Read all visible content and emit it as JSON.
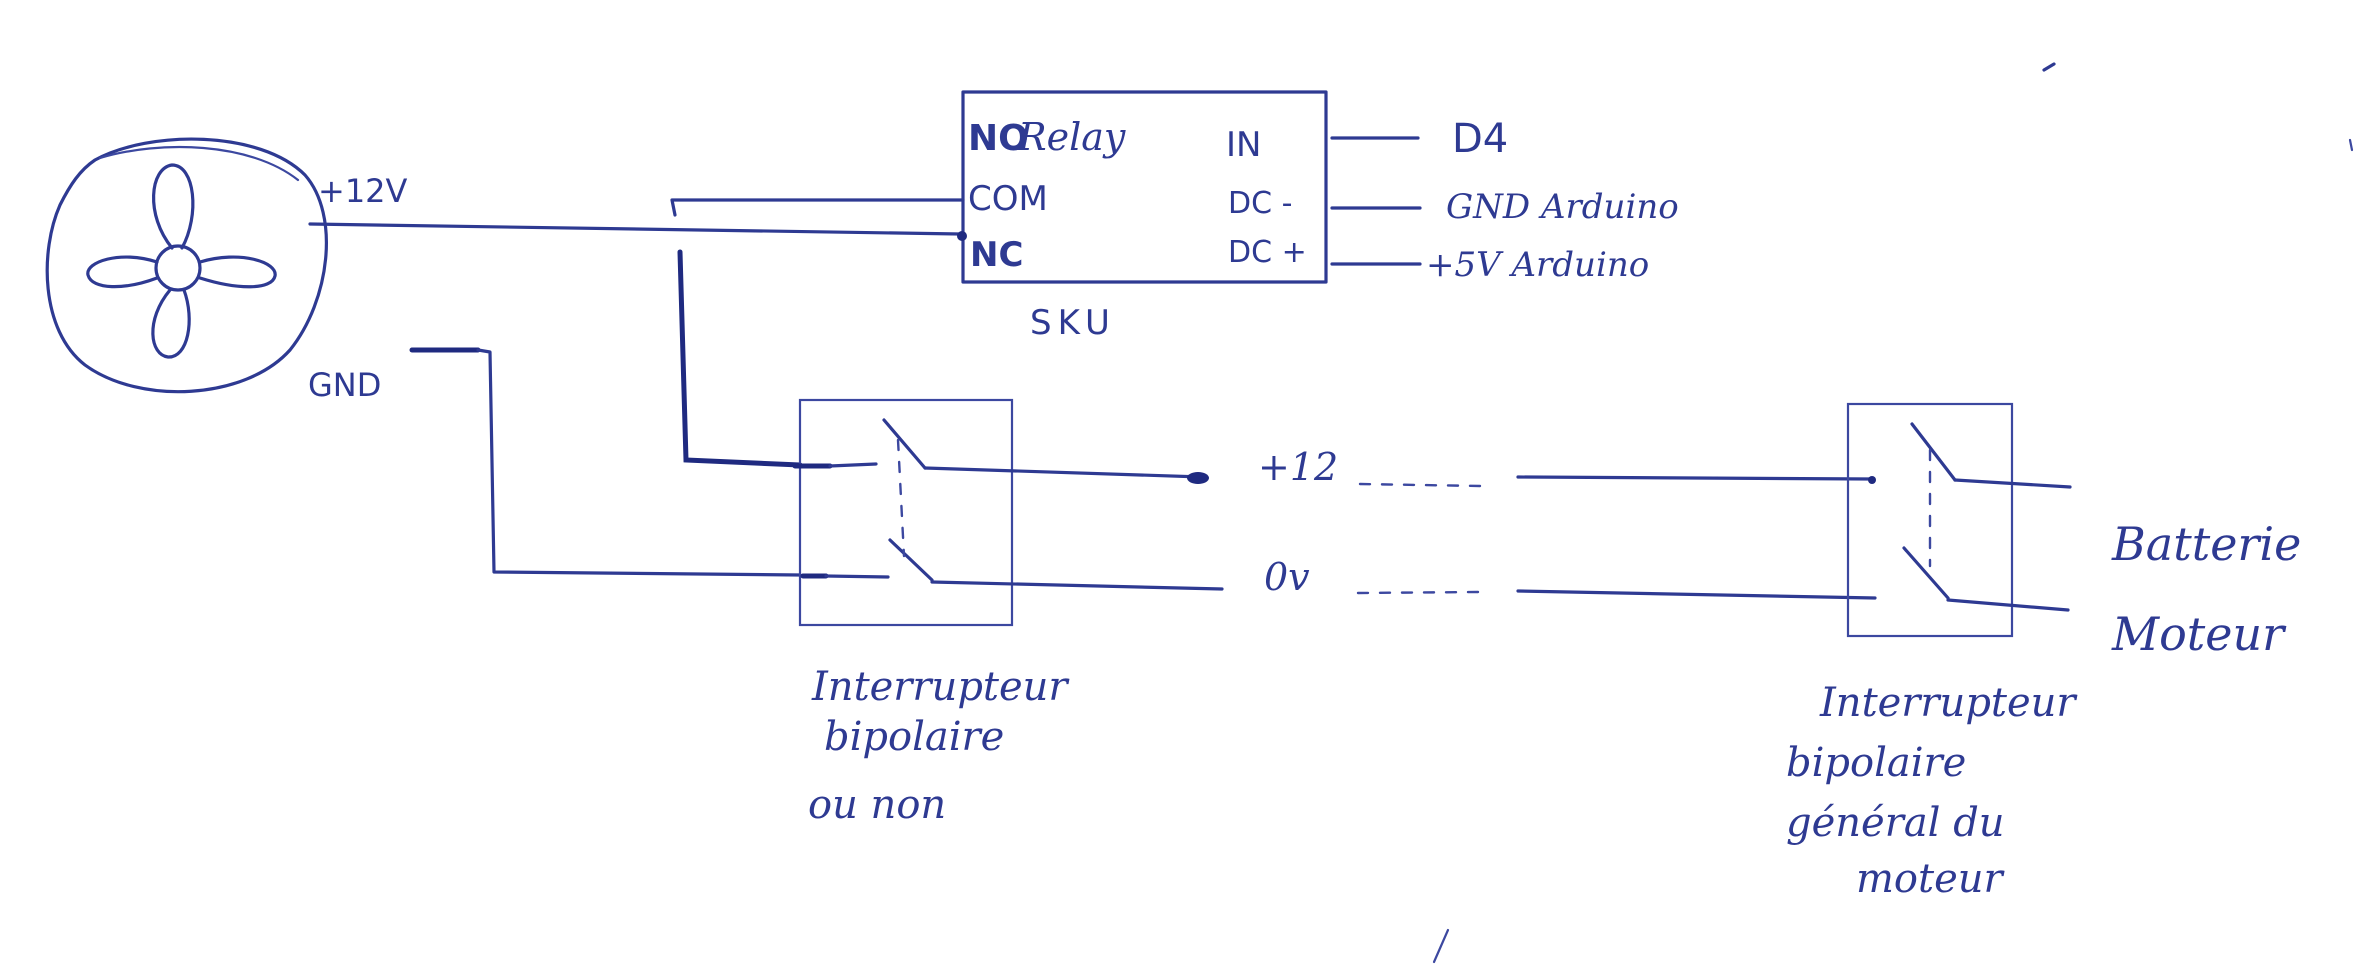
{
  "fan": {
    "plus_label": "+12V",
    "gnd_label": "GND"
  },
  "relay": {
    "title": "Relay",
    "pin_no": "NO",
    "pin_com": "COM",
    "pin_nc": "NC",
    "pin_in": "IN",
    "pin_dc_minus": "DC -",
    "pin_dc_plus": "DC +",
    "sku": "SKU"
  },
  "arduino": {
    "d4": "D4",
    "gnd": "GND Arduino",
    "v5": "+5V Arduino"
  },
  "lines": {
    "plus12": "+12",
    "zero": "0v"
  },
  "switch_left": {
    "caption": [
      "Interrupteur",
      "bipolaire",
      "ou non"
    ]
  },
  "switch_right": {
    "caption": [
      "Interrupteur",
      "bipolaire",
      "général du",
      "moteur"
    ]
  },
  "battery": {
    "caption": [
      "Batterie",
      "Moteur"
    ]
  },
  "colors": {
    "ink": "#2e3a92",
    "paper": "#ffffff"
  }
}
